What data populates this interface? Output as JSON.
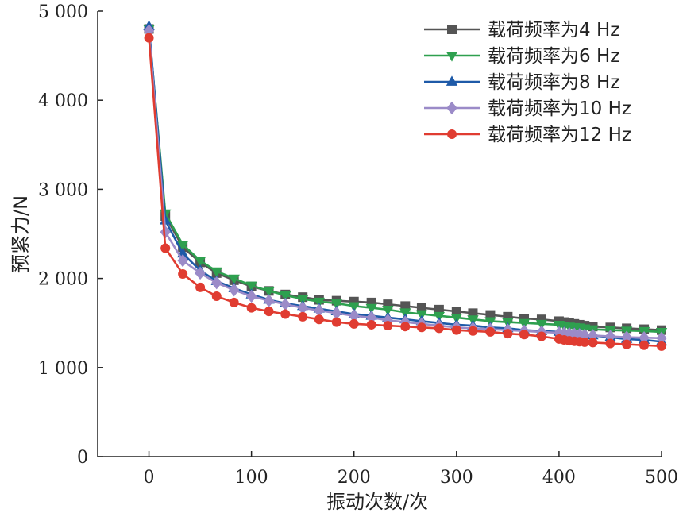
{
  "chart_data": {
    "type": "line",
    "title": "",
    "xlabel": "振动次数/次",
    "ylabel": "预紧力/N",
    "xlim": [
      -50,
      500
    ],
    "ylim": [
      0,
      5000
    ],
    "xticks": [
      0,
      100,
      200,
      300,
      400,
      500
    ],
    "xtick_labels": [
      "0",
      "100",
      "200",
      "300",
      "400",
      "500"
    ],
    "yticks": [
      0,
      1000,
      2000,
      3000,
      4000,
      5000
    ],
    "ytick_labels": [
      "0",
      "1 000",
      "2 000",
      "3 000",
      "4 000",
      "5 000"
    ],
    "grid": false,
    "legend_position": "top-right",
    "x": [
      0,
      16,
      33,
      50,
      66,
      83,
      100,
      117,
      133,
      150,
      166,
      183,
      200,
      217,
      233,
      250,
      266,
      283,
      300,
      316,
      333,
      350,
      366,
      383,
      400,
      405,
      410,
      415,
      420,
      425,
      433,
      450,
      466,
      483,
      500
    ],
    "series": [
      {
        "name": "载荷频率为4 Hz",
        "color": "#555555",
        "marker": "square",
        "values": [
          4800,
          2700,
          2350,
          2180,
          2060,
          1980,
          1910,
          1860,
          1820,
          1790,
          1760,
          1750,
          1740,
          1730,
          1710,
          1690,
          1670,
          1650,
          1630,
          1610,
          1590,
          1570,
          1550,
          1540,
          1520,
          1510,
          1500,
          1490,
          1480,
          1470,
          1460,
          1450,
          1440,
          1430,
          1420
        ]
      },
      {
        "name": "载荷频率为6 Hz",
        "color": "#2ea04f",
        "marker": "triangle-down",
        "values": [
          4800,
          2730,
          2380,
          2200,
          2080,
          2000,
          1920,
          1860,
          1810,
          1770,
          1740,
          1720,
          1690,
          1670,
          1650,
          1620,
          1600,
          1580,
          1560,
          1540,
          1520,
          1510,
          1500,
          1490,
          1480,
          1470,
          1460,
          1455,
          1450,
          1440,
          1430,
          1420,
          1415,
          1410,
          1400
        ]
      },
      {
        "name": "载荷频率为8 Hz",
        "color": "#1e5aa8",
        "marker": "triangle-up",
        "values": [
          4830,
          2650,
          2280,
          2090,
          1970,
          1890,
          1820,
          1760,
          1720,
          1690,
          1660,
          1630,
          1600,
          1580,
          1560,
          1540,
          1520,
          1500,
          1480,
          1470,
          1450,
          1440,
          1420,
          1410,
          1400,
          1395,
          1390,
          1385,
          1380,
          1370,
          1360,
          1340,
          1320,
          1310,
          1290
        ]
      },
      {
        "name": "载荷频率为10 Hz",
        "color": "#9b8bc8",
        "marker": "diamond",
        "values": [
          4780,
          2520,
          2200,
          2060,
          1950,
          1870,
          1800,
          1750,
          1710,
          1670,
          1640,
          1610,
          1580,
          1560,
          1530,
          1510,
          1490,
          1470,
          1450,
          1440,
          1430,
          1420,
          1410,
          1400,
          1390,
          1385,
          1380,
          1375,
          1370,
          1365,
          1360,
          1350,
          1340,
          1335,
          1330
        ]
      },
      {
        "name": "载荷频率为12 Hz",
        "color": "#e03c31",
        "marker": "circle",
        "values": [
          4700,
          2340,
          2050,
          1900,
          1800,
          1730,
          1670,
          1630,
          1600,
          1570,
          1540,
          1510,
          1490,
          1480,
          1470,
          1460,
          1450,
          1440,
          1420,
          1410,
          1400,
          1380,
          1370,
          1350,
          1320,
          1310,
          1300,
          1295,
          1290,
          1285,
          1280,
          1270,
          1260,
          1250,
          1240
        ]
      }
    ]
  }
}
